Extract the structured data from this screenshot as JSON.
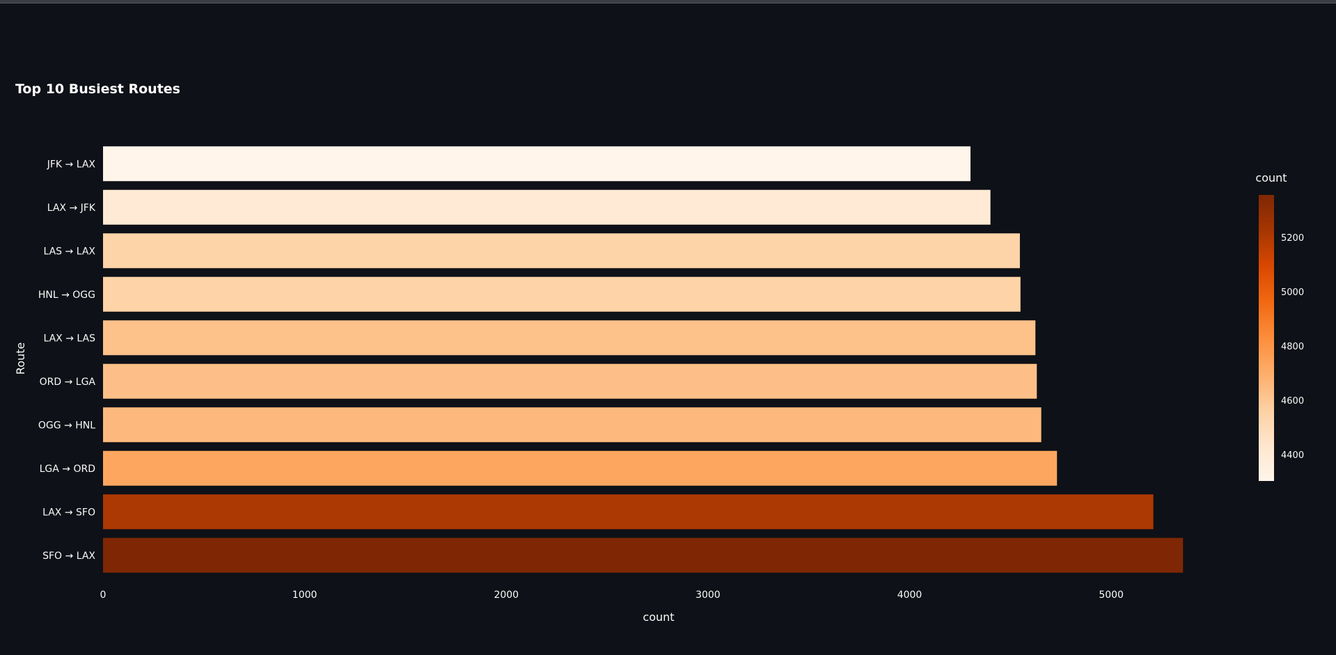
{
  "chart_data": {
    "type": "bar",
    "orientation": "horizontal",
    "title": "Top 10 Busiest Routes",
    "xlabel": "count",
    "ylabel": "Route",
    "xlim": [
      0,
      5400
    ],
    "x_ticks": [
      0,
      1000,
      2000,
      3000,
      4000,
      5000
    ],
    "categories": [
      "JFK → LAX",
      "LAX → JFK",
      "LAS → LAX",
      "HNL → OGG",
      "LAX → LAS",
      "ORD → LGA",
      "OGG → HNL",
      "LGA → ORD",
      "LAX → SFO",
      "SFO → LAX"
    ],
    "values": [
      4302,
      4401,
      4547,
      4550,
      4624,
      4631,
      4653,
      4731,
      5209,
      5356
    ],
    "colorbar": {
      "title": "count",
      "range": [
        4302,
        5356
      ],
      "ticks": [
        4400,
        4600,
        4800,
        5000,
        5200
      ],
      "colors": [
        "#fff5eb",
        "#fee6ce",
        "#fdd0a2",
        "#fdae6b",
        "#fd8d3c",
        "#f16913",
        "#d94801",
        "#a63603",
        "#7f2704"
      ]
    },
    "grid": false,
    "background": "#0e1117"
  }
}
